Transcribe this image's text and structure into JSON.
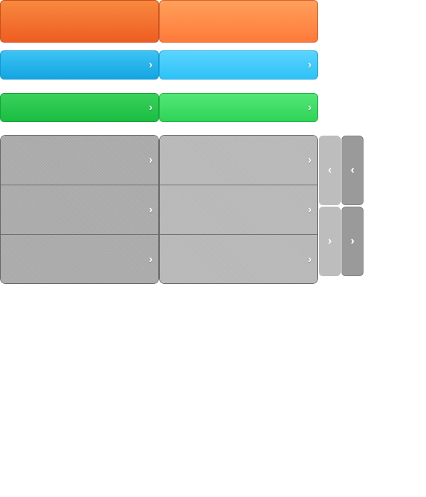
{
  "icons": {
    "chevron_right": "›",
    "chevron_left": "‹"
  },
  "colors": {
    "orange": "#f26a2c",
    "blue": "#1aa9e6",
    "green": "#22c24a",
    "gray": "#a9a9a9"
  },
  "panels": {
    "rows": 3
  }
}
